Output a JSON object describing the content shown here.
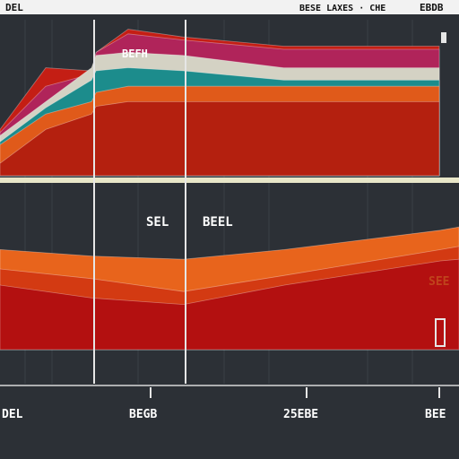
{
  "window": {
    "title_left": "DEL",
    "title_right_1": "BESE LAXES · CHE",
    "title_right_2": "EBDB"
  },
  "colors": {
    "background": "#2c3036",
    "header_bar": "#f2f2f2",
    "grid": "#3a3f46",
    "divider": "#e8e6c8",
    "cursor": "#e6e6e6",
    "text": "#ffffff"
  },
  "chart_data": [
    {
      "type": "area",
      "title": "",
      "x": [
        0,
        10,
        20,
        21,
        28,
        40,
        62,
        93,
        96
      ],
      "annotation": "BEFH",
      "ylim": [
        0,
        100
      ],
      "grid": true,
      "series": [
        {
          "color": "#b4200f",
          "values": [
            8,
            30,
            40,
            45,
            48,
            48,
            48,
            48,
            48
          ]
        },
        {
          "color": "#e05a1a",
          "values": [
            20,
            40,
            48,
            54,
            58,
            58,
            58,
            58,
            58
          ]
        },
        {
          "color": "#1c8c8c",
          "values": [
            22,
            44,
            62,
            68,
            70,
            68,
            62,
            62,
            62
          ]
        },
        {
          "color": "#d4d2c4",
          "values": [
            26,
            48,
            70,
            78,
            80,
            78,
            70,
            70,
            70
          ]
        },
        {
          "color": "#b0245a",
          "values": [
            28,
            58,
            66,
            80,
            92,
            88,
            82,
            82,
            82
          ]
        },
        {
          "color": "#c41e14",
          "values": [
            30,
            70,
            68,
            80,
            95,
            90,
            84,
            84,
            84
          ]
        }
      ]
    },
    {
      "type": "area",
      "title": "",
      "x": [
        0,
        20,
        40,
        62,
        96,
        100
      ],
      "annotations": [
        "SEL",
        "BEEL",
        "SEE"
      ],
      "ylim": [
        0,
        100
      ],
      "grid": true,
      "series": [
        {
          "color": "#b31010",
          "values": [
            40,
            32,
            28,
            40,
            55,
            56
          ]
        },
        {
          "color": "#d33a12",
          "values": [
            50,
            44,
            36,
            46,
            62,
            64
          ]
        },
        {
          "color": "#e8641c",
          "values": [
            62,
            58,
            56,
            62,
            74,
            76
          ]
        }
      ]
    }
  ],
  "x_tick_labels": [
    "DEL",
    "BEGB",
    "25EBE",
    "BEE"
  ],
  "cursor_labels": [
    "SEL",
    "BEEL"
  ]
}
